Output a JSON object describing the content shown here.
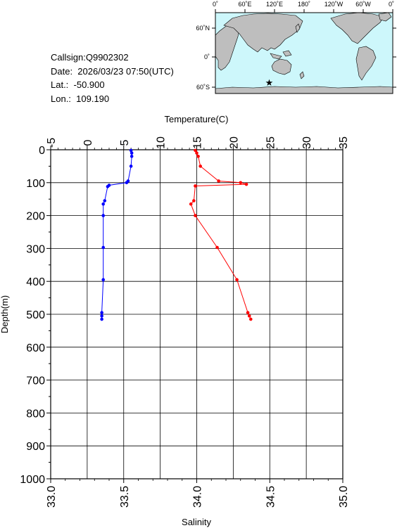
{
  "info": {
    "callsign": "Callsign:Q9902302",
    "date": "Date:  2026/03/23 07:50(UTC)",
    "lat": "Lat.:  -50.900",
    "lon": "Lon.:  109.190"
  },
  "map": {
    "lon_labels": [
      "0˚",
      "60˚E",
      "120˚E",
      "180˚",
      "120˚W",
      "60˚W",
      "0˚"
    ],
    "lat_labels": [
      "60˚N",
      "0˚",
      "60˚S"
    ],
    "station": {
      "lat": -50.9,
      "lon": 109.19
    },
    "colors": {
      "ocean": "#cdf7fb",
      "land": "#bebebe",
      "station": "#ff0000"
    }
  },
  "chart_data": {
    "type": "line",
    "title": "",
    "ylabel": "Depth(m)",
    "ylim": [
      0,
      1000
    ],
    "yticks": [
      "0",
      "100",
      "200",
      "300",
      "400",
      "500",
      "600",
      "700",
      "800",
      "900",
      "1000"
    ],
    "temperature_axis": {
      "label": "Temperature(C)",
      "range": [
        -5,
        35
      ],
      "ticks": [
        "-5",
        "0",
        "5",
        "10",
        "15",
        "20",
        "25",
        "30",
        "35"
      ]
    },
    "salinity_axis": {
      "label": "Salinity",
      "range": [
        33.0,
        35.0
      ],
      "ticks": [
        "33.0",
        "33.5",
        "34.0",
        "34.5",
        "35.0"
      ]
    },
    "series": [
      {
        "quantity": "temperature",
        "color": "#ff0000",
        "points": [
          {
            "depth": 2,
            "value": 14.8
          },
          {
            "depth": 10,
            "value": 15.0
          },
          {
            "depth": 20,
            "value": 15.2
          },
          {
            "depth": 50,
            "value": 15.5
          },
          {
            "depth": 95,
            "value": 18.0
          },
          {
            "depth": 100,
            "value": 21.0
          },
          {
            "depth": 105,
            "value": 21.8
          },
          {
            "depth": 110,
            "value": 14.8
          },
          {
            "depth": 155,
            "value": 14.6
          },
          {
            "depth": 165,
            "value": 14.2
          },
          {
            "depth": 200,
            "value": 14.8
          },
          {
            "depth": 297,
            "value": 17.8
          },
          {
            "depth": 395,
            "value": 20.5
          },
          {
            "depth": 495,
            "value": 22.0
          },
          {
            "depth": 505,
            "value": 22.2
          },
          {
            "depth": 515,
            "value": 22.4
          }
        ]
      },
      {
        "quantity": "salinity",
        "color": "#0000ff",
        "points": [
          {
            "depth": 2,
            "value": 33.55
          },
          {
            "depth": 10,
            "value": 33.555
          },
          {
            "depth": 20,
            "value": 33.555
          },
          {
            "depth": 50,
            "value": 33.55
          },
          {
            "depth": 95,
            "value": 33.53
          },
          {
            "depth": 100,
            "value": 33.52
          },
          {
            "depth": 108,
            "value": 33.4
          },
          {
            "depth": 112,
            "value": 33.39
          },
          {
            "depth": 155,
            "value": 33.37
          },
          {
            "depth": 165,
            "value": 33.36
          },
          {
            "depth": 200,
            "value": 33.36
          },
          {
            "depth": 297,
            "value": 33.36
          },
          {
            "depth": 395,
            "value": 33.36
          },
          {
            "depth": 495,
            "value": 33.35
          },
          {
            "depth": 505,
            "value": 33.35
          },
          {
            "depth": 515,
            "value": 33.35
          }
        ]
      }
    ]
  }
}
